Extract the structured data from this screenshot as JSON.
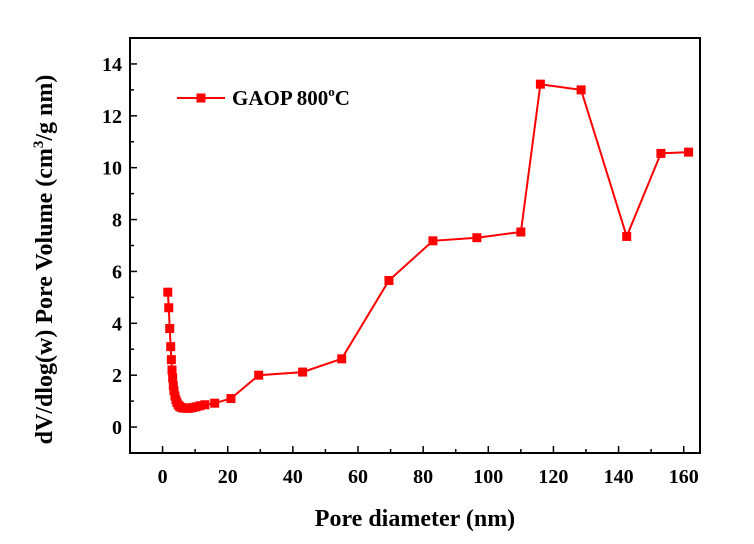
{
  "chart_data": {
    "type": "line",
    "xlabel": "Pore diameter (nm)",
    "ylabel_parts": [
      "dV/dlog(w) Pore Volume (cm",
      "3",
      "/g nm)"
    ],
    "xlim": [
      -10,
      165
    ],
    "ylim": [
      -1,
      15
    ],
    "xticks": [
      0,
      20,
      40,
      60,
      80,
      100,
      120,
      140,
      160
    ],
    "yticks": [
      0,
      2,
      4,
      6,
      8,
      10,
      12,
      14
    ],
    "legend": {
      "position": "top-left",
      "label_parts": [
        "GAOP 800",
        "o",
        "C"
      ]
    },
    "series": [
      {
        "name": "GAOP 800oC",
        "color": "#ff0000",
        "marker": "square",
        "points": [
          [
            1.6,
            5.2
          ],
          [
            1.9,
            4.6
          ],
          [
            2.2,
            3.8
          ],
          [
            2.5,
            3.1
          ],
          [
            2.7,
            2.6
          ],
          [
            2.9,
            2.2
          ],
          [
            3.1,
            1.9
          ],
          [
            3.3,
            1.6
          ],
          [
            3.5,
            1.4
          ],
          [
            3.8,
            1.2
          ],
          [
            4.1,
            1.05
          ],
          [
            4.4,
            0.95
          ],
          [
            4.8,
            0.85
          ],
          [
            5.2,
            0.8
          ],
          [
            5.7,
            0.76
          ],
          [
            6.2,
            0.74
          ],
          [
            6.8,
            0.73
          ],
          [
            7.5,
            0.72
          ],
          [
            8.3,
            0.73
          ],
          [
            9.2,
            0.75
          ],
          [
            10.3,
            0.78
          ],
          [
            11.5,
            0.82
          ],
          [
            13.0,
            0.86
          ],
          [
            16.0,
            0.92
          ],
          [
            21.0,
            1.1
          ],
          [
            29.5,
            2.0
          ],
          [
            43.0,
            2.12
          ],
          [
            55.0,
            2.63
          ],
          [
            69.5,
            5.65
          ],
          [
            83.0,
            7.18
          ],
          [
            96.5,
            7.3
          ],
          [
            110.0,
            7.52
          ],
          [
            116.0,
            13.22
          ],
          [
            128.5,
            13.0
          ],
          [
            142.5,
            7.35
          ],
          [
            153.0,
            10.55
          ],
          [
            161.5,
            10.6
          ]
        ]
      }
    ]
  }
}
